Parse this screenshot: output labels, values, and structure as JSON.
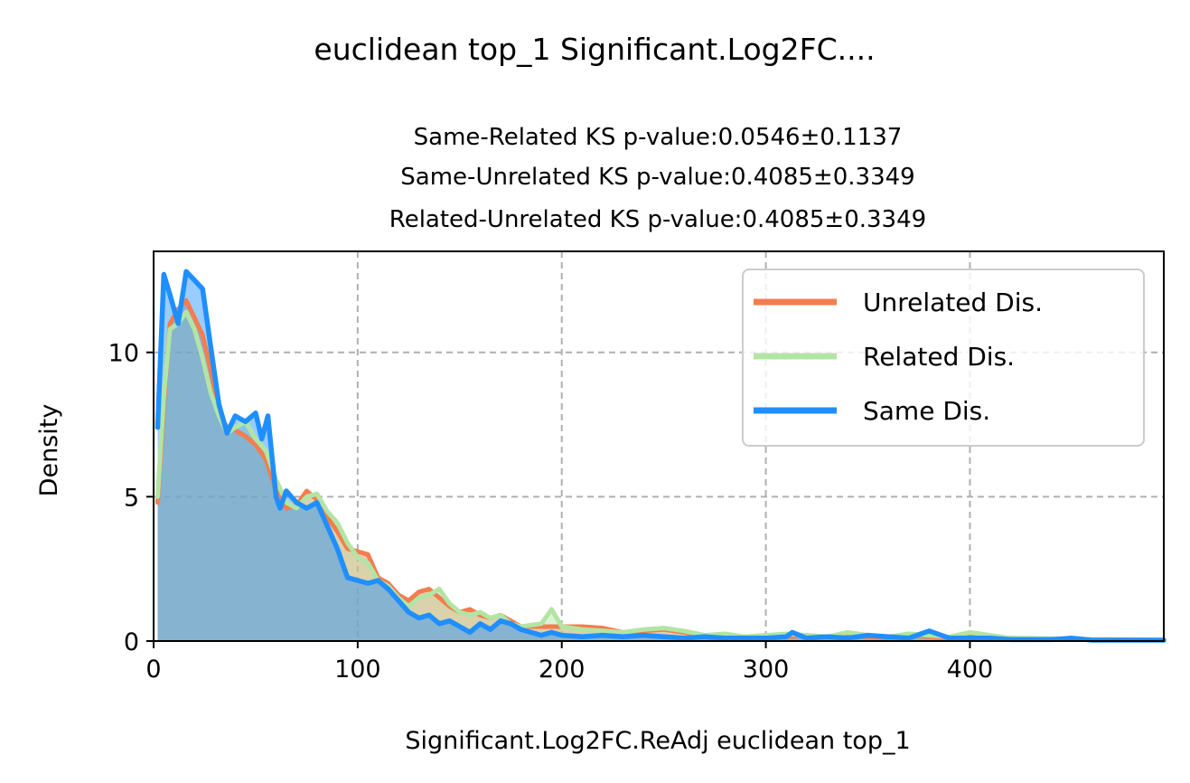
{
  "figure": {
    "suptitle": "euclidean top_1 Significant.Log2FC....",
    "subtitle_lines": [
      "Same-Related KS p-value:0.0546±0.1137",
      "Same-Unrelated KS p-value:0.4085±0.3349",
      "Related-Unrelated KS p-value:0.4085±0.3349"
    ]
  },
  "chart_data": {
    "type": "area",
    "title": "euclidean top_1 Significant.Log2FC....",
    "subtitle": [
      "Same-Related KS p-value:0.0546±0.1137",
      "Same-Unrelated KS p-value:0.4085±0.3349",
      "Related-Unrelated KS p-value:0.4085±0.3349"
    ],
    "xlabel": "Significant.Log2FC.ReAdj euclidean top_1",
    "ylabel": "Density",
    "xlim": [
      0,
      495
    ],
    "ylim": [
      0,
      13.5
    ],
    "xticks": [
      0,
      100,
      200,
      300,
      400
    ],
    "yticks": [
      0,
      5,
      10
    ],
    "xtick_labels": [
      "0",
      "100",
      "200",
      "300",
      "400"
    ],
    "ytick_labels": [
      "0",
      "5",
      "10"
    ],
    "grid": true,
    "legend_position": "top-right",
    "series": [
      {
        "name": "Unrelated Dis.",
        "color": "#f47d4f",
        "x": [
          2,
          5,
          8,
          12,
          16,
          20,
          24,
          28,
          32,
          36,
          40,
          45,
          50,
          55,
          60,
          65,
          70,
          75,
          80,
          85,
          90,
          95,
          100,
          105,
          110,
          115,
          120,
          125,
          130,
          135,
          140,
          145,
          150,
          155,
          160,
          165,
          170,
          175,
          180,
          190,
          200,
          210,
          220,
          230,
          240,
          250,
          260,
          270,
          280,
          290,
          300,
          310,
          320,
          330,
          340,
          350,
          360,
          370,
          380,
          390,
          400,
          410,
          420,
          430,
          440,
          450,
          460,
          470,
          480,
          490,
          495
        ],
        "y": [
          4.8,
          8.2,
          11.0,
          11.5,
          11.8,
          11.2,
          10.6,
          9.4,
          7.9,
          7.4,
          7.3,
          7.1,
          6.8,
          6.3,
          5.2,
          4.6,
          4.7,
          5.2,
          4.9,
          4.3,
          3.8,
          3.2,
          3.1,
          3.0,
          2.2,
          2.0,
          1.6,
          1.4,
          1.7,
          1.8,
          1.5,
          1.2,
          1.0,
          1.1,
          0.9,
          0.8,
          0.9,
          0.7,
          0.5,
          0.5,
          0.5,
          0.5,
          0.45,
          0.3,
          0.35,
          0.4,
          0.3,
          0.2,
          0.2,
          0.15,
          0.2,
          0.15,
          0.2,
          0.15,
          0.2,
          0.15,
          0.1,
          0.2,
          0.15,
          0.1,
          0.2,
          0.1,
          0.1,
          0.08,
          0.08,
          0.05,
          0.05,
          0.05,
          0.04,
          0.03,
          0.03
        ]
      },
      {
        "name": "Related Dis.",
        "color": "#b2e5a4",
        "x": [
          2,
          5,
          8,
          12,
          16,
          20,
          24,
          28,
          32,
          36,
          40,
          45,
          50,
          55,
          60,
          65,
          70,
          75,
          80,
          85,
          90,
          95,
          100,
          105,
          110,
          115,
          120,
          125,
          130,
          135,
          140,
          145,
          150,
          155,
          160,
          165,
          170,
          175,
          180,
          190,
          195,
          200,
          210,
          220,
          230,
          240,
          250,
          260,
          270,
          280,
          290,
          300,
          310,
          320,
          330,
          340,
          350,
          360,
          370,
          380,
          390,
          400,
          410,
          420,
          430,
          440,
          450,
          460,
          470,
          480,
          490,
          495
        ],
        "y": [
          5.0,
          8.5,
          10.8,
          11.0,
          11.4,
          10.8,
          9.8,
          8.6,
          7.8,
          7.2,
          7.4,
          7.6,
          7.0,
          6.6,
          5.6,
          4.8,
          4.6,
          5.0,
          5.1,
          4.5,
          4.1,
          3.4,
          2.9,
          2.7,
          2.1,
          1.9,
          1.5,
          1.2,
          1.5,
          1.6,
          1.8,
          1.3,
          1.0,
          0.9,
          1.0,
          0.8,
          0.9,
          0.6,
          0.5,
          0.6,
          1.1,
          0.5,
          0.4,
          0.35,
          0.3,
          0.4,
          0.45,
          0.35,
          0.2,
          0.25,
          0.15,
          0.2,
          0.25,
          0.2,
          0.15,
          0.3,
          0.2,
          0.15,
          0.25,
          0.2,
          0.15,
          0.3,
          0.2,
          0.1,
          0.1,
          0.08,
          0.05,
          0.05,
          0.04,
          0.03,
          0.03,
          0.03
        ]
      },
      {
        "name": "Same Dis.",
        "color": "#1f8fff",
        "x": [
          2,
          5,
          8,
          12,
          16,
          20,
          24,
          28,
          32,
          36,
          40,
          45,
          50,
          53,
          56,
          60,
          62,
          65,
          70,
          75,
          80,
          85,
          90,
          95,
          100,
          105,
          110,
          115,
          120,
          125,
          130,
          135,
          140,
          145,
          150,
          155,
          160,
          165,
          170,
          175,
          180,
          185,
          190,
          195,
          200,
          210,
          220,
          230,
          240,
          250,
          260,
          270,
          280,
          290,
          300,
          310,
          313,
          320,
          330,
          340,
          350,
          360,
          370,
          380,
          390,
          400,
          410,
          420,
          430,
          440,
          450,
          460,
          470,
          480,
          490,
          495
        ],
        "y": [
          7.4,
          12.7,
          12.0,
          11.0,
          12.8,
          12.5,
          12.2,
          10.2,
          8.2,
          7.2,
          7.8,
          7.6,
          7.9,
          7.0,
          7.8,
          5.0,
          4.6,
          5.2,
          4.8,
          4.6,
          4.8,
          4.0,
          3.2,
          2.2,
          2.1,
          2.0,
          2.1,
          1.8,
          1.4,
          1.0,
          0.8,
          0.9,
          0.6,
          0.7,
          0.5,
          0.3,
          0.6,
          0.4,
          0.7,
          0.6,
          0.4,
          0.3,
          0.2,
          0.3,
          0.2,
          0.15,
          0.2,
          0.15,
          0.2,
          0.15,
          0.1,
          0.15,
          0.1,
          0.1,
          0.1,
          0.15,
          0.3,
          0.1,
          0.15,
          0.1,
          0.2,
          0.15,
          0.1,
          0.35,
          0.1,
          0.1,
          0.1,
          0.05,
          0.05,
          0.05,
          0.1,
          0.03,
          0.03,
          0.03,
          0.03,
          0.03
        ]
      }
    ]
  }
}
